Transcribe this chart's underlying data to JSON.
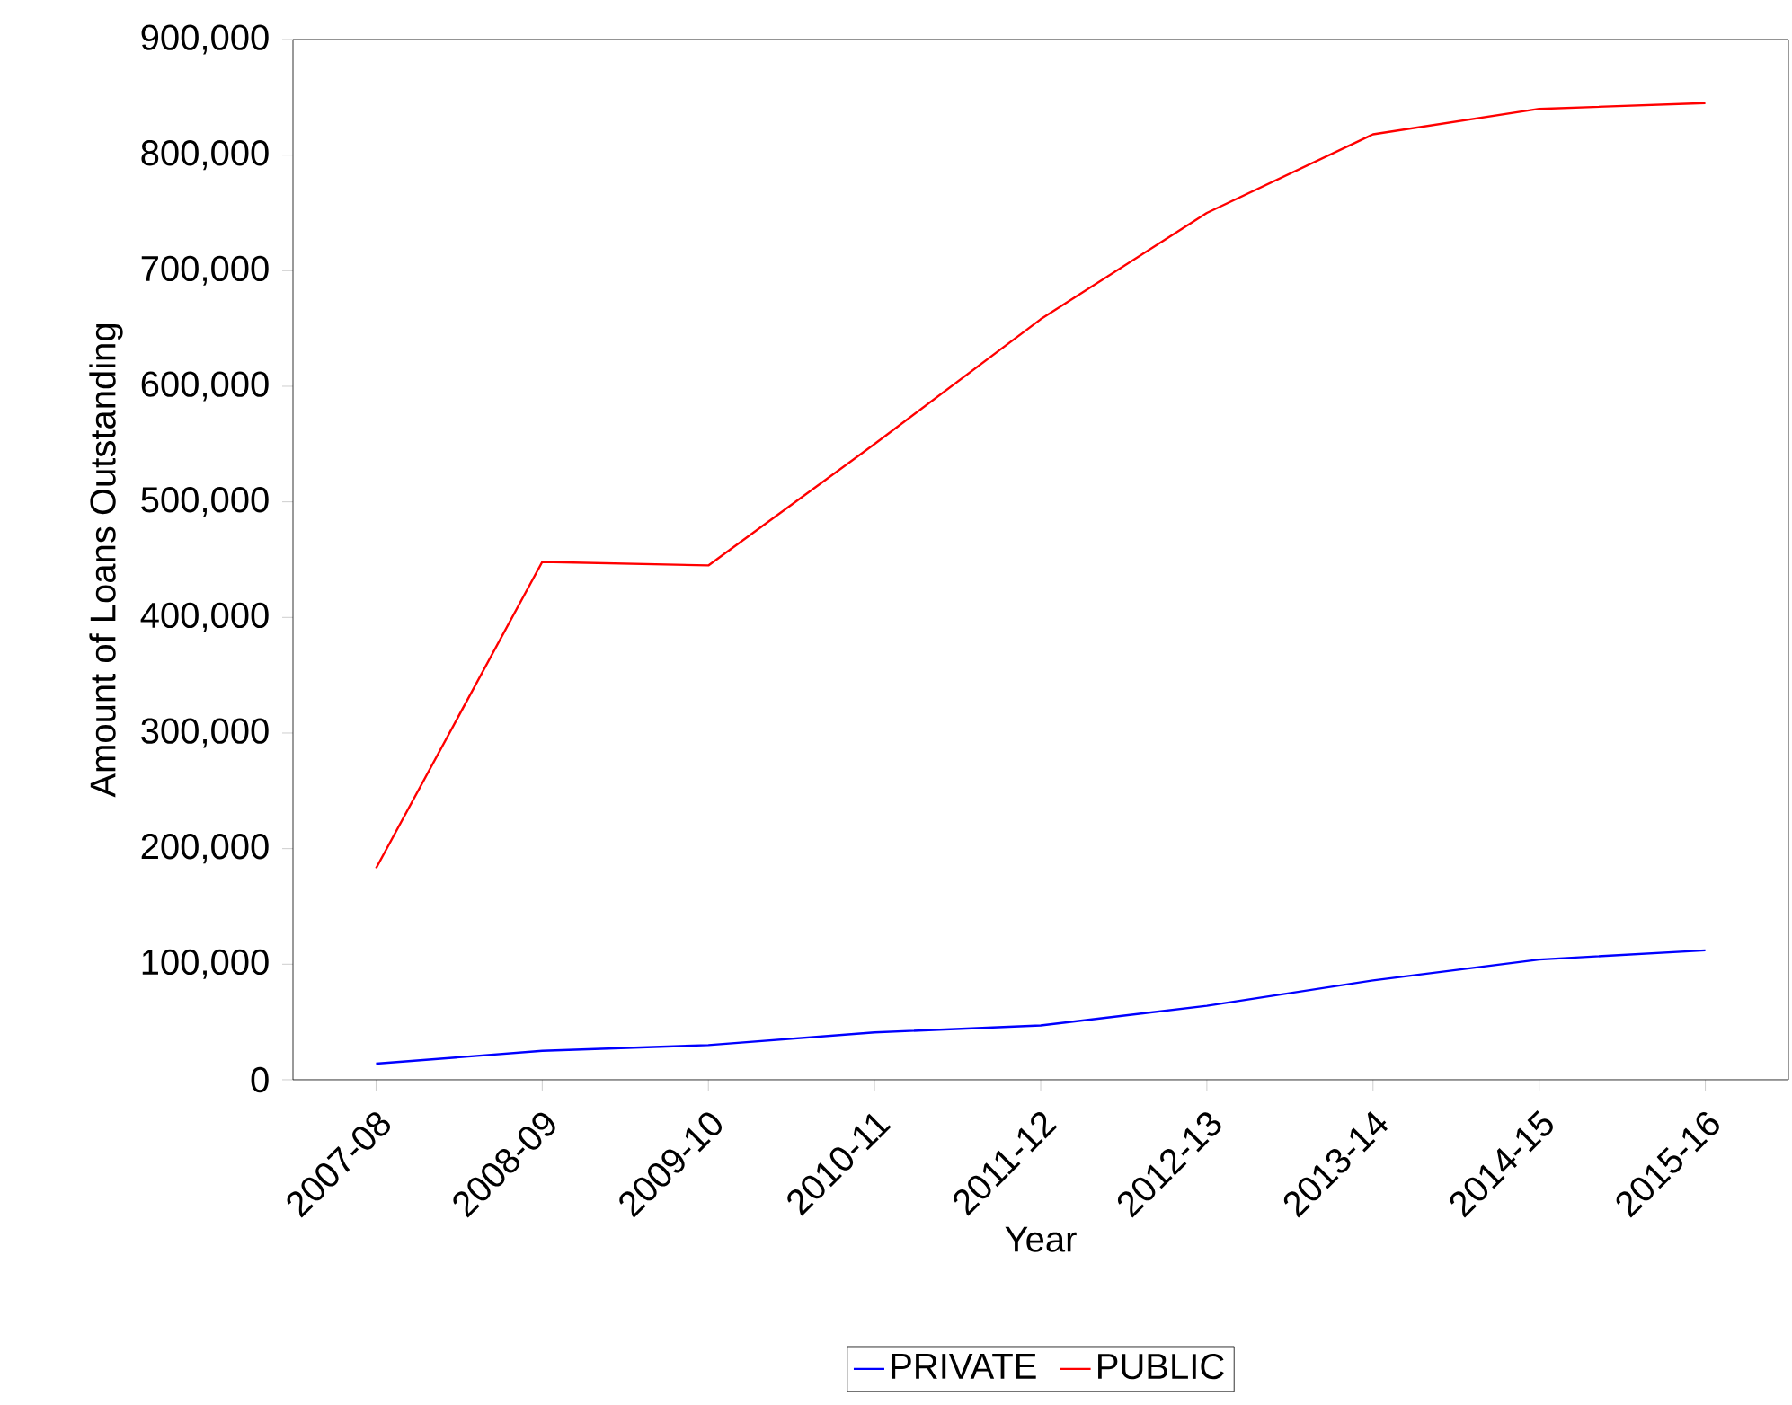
{
  "chart_data": {
    "type": "line",
    "xlabel": "Year",
    "ylabel": "Amount of Loans Outstanding",
    "categories": [
      "2007-08",
      "2008-09",
      "2009-10",
      "2010-11",
      "2011-12",
      "2012-13",
      "2013-14",
      "2014-15",
      "2015-16"
    ],
    "series": [
      {
        "name": "PRIVATE",
        "color": "#0000ff",
        "values": [
          14000,
          25000,
          30000,
          41000,
          47000,
          64000,
          86000,
          104000,
          112000
        ]
      },
      {
        "name": "PUBLIC",
        "color": "#ff0000",
        "values": [
          183000,
          448000,
          445000,
          550000,
          658000,
          750000,
          818000,
          840000,
          845000
        ]
      }
    ],
    "ylim": [
      0,
      900000
    ],
    "yticks": [
      {
        "value": 0,
        "label": "0"
      },
      {
        "value": 100000,
        "label": "100,000"
      },
      {
        "value": 200000,
        "label": "200,000"
      },
      {
        "value": 300000,
        "label": "300,000"
      },
      {
        "value": 400000,
        "label": "400,000"
      },
      {
        "value": 500000,
        "label": "500,000"
      },
      {
        "value": 600000,
        "label": "600,000"
      },
      {
        "value": 700000,
        "label": "700,000"
      },
      {
        "value": 800000,
        "label": "800,000"
      },
      {
        "value": 900000,
        "label": "900,000"
      }
    ],
    "legend": "bottom"
  }
}
